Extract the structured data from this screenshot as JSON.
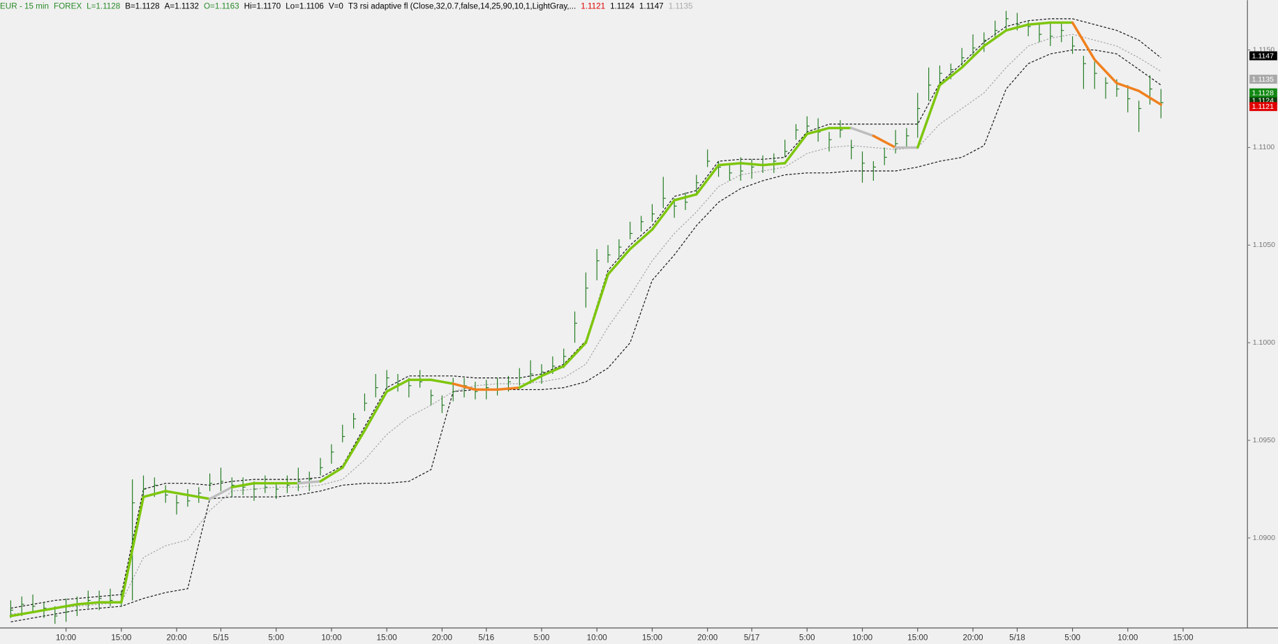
{
  "chart_data": {
    "type": "ohlc",
    "header": [
      {
        "text": "EUR - 15 min",
        "color": "#2a8a2a"
      },
      {
        "text": "FOREX",
        "color": "#2a8a2a"
      },
      {
        "text": "L=1.1128",
        "color": "#2a8a2a"
      },
      {
        "text": "B=1.1128",
        "color": "#000000"
      },
      {
        "text": "A=1.1132",
        "color": "#000000"
      },
      {
        "text": "O=1.1163",
        "color": "#2a8a2a"
      },
      {
        "text": "Hi=1.1170",
        "color": "#000000"
      },
      {
        "text": "Lo=1.1106",
        "color": "#000000"
      },
      {
        "text": "V=0",
        "color": "#000000"
      },
      {
        "text": "T3 rsi adaptive fl (Close,32,0.7,false,14,25,90,10,1,LightGray,...",
        "color": "#000000"
      },
      {
        "text": "1.1121",
        "color": "#e00000"
      },
      {
        "text": "1.1124",
        "color": "#000000"
      },
      {
        "text": "1.1147",
        "color": "#000000"
      },
      {
        "text": "1.1135",
        "color": "#aaaaaa"
      }
    ],
    "xlim": [
      0.03,
      112.78
    ],
    "ylim": [
      1.08541,
      1.11755
    ],
    "xticks": [
      {
        "value": 6,
        "label": "10:00"
      },
      {
        "value": 11,
        "label": "15:00"
      },
      {
        "value": 16,
        "label": "20:00"
      },
      {
        "value": 20,
        "label": "5/15"
      },
      {
        "value": 25,
        "label": "5:00"
      },
      {
        "value": 30,
        "label": "10:00"
      },
      {
        "value": 35,
        "label": "15:00"
      },
      {
        "value": 40,
        "label": "20:00"
      },
      {
        "value": 44,
        "label": "5/16"
      },
      {
        "value": 49,
        "label": "5:00"
      },
      {
        "value": 54,
        "label": "10:00"
      },
      {
        "value": 59,
        "label": "15:00"
      },
      {
        "value": 64,
        "label": "20:00"
      },
      {
        "value": 68,
        "label": "5/17"
      },
      {
        "value": 73,
        "label": "5:00"
      },
      {
        "value": 78,
        "label": "10:00"
      },
      {
        "value": 83,
        "label": "15:00"
      },
      {
        "value": 88,
        "label": "20:00"
      },
      {
        "value": 92,
        "label": "5/18"
      },
      {
        "value": 97,
        "label": "5:00"
      },
      {
        "value": 102,
        "label": "10:00"
      },
      {
        "value": 107,
        "label": "15:00"
      }
    ],
    "yticks": [
      {
        "value": 1.09,
        "label": "1.0900"
      },
      {
        "value": 1.095,
        "label": "1.0950"
      },
      {
        "value": 1.1,
        "label": "1.1000"
      },
      {
        "value": 1.105,
        "label": "1.1050"
      },
      {
        "value": 1.11,
        "label": "1.1100"
      },
      {
        "value": 1.115,
        "label": "1.1150"
      }
    ],
    "price_markers": [
      {
        "value": 1.1147,
        "color": "#000000"
      },
      {
        "value": 1.1135,
        "color": "#a8a8a8"
      },
      {
        "value": 1.1124,
        "color": "#0a3d0a"
      },
      {
        "value": 1.1128,
        "color": "#118811"
      },
      {
        "value": 1.1121,
        "color": "#e00000"
      }
    ],
    "bars": {
      "color": "#1f7a1f",
      "x": [
        1,
        2,
        3,
        4,
        5,
        6,
        7,
        8,
        9,
        10,
        11,
        12,
        13,
        14,
        15,
        16,
        17,
        18,
        19,
        20,
        21,
        22,
        23,
        24,
        25,
        26,
        27,
        28,
        29,
        30,
        31,
        32,
        33,
        34,
        35,
        36,
        37,
        38,
        39,
        40,
        41,
        42,
        43,
        44,
        45,
        46,
        47,
        48,
        49,
        50,
        51,
        52,
        53,
        54,
        55,
        56,
        57,
        58,
        59,
        60,
        61,
        62,
        63,
        64,
        65,
        66,
        67,
        68,
        69,
        70,
        71,
        72,
        73,
        74,
        75,
        76,
        77,
        78,
        79,
        80,
        81,
        82,
        83,
        84,
        85,
        86,
        87,
        88,
        89,
        90,
        91,
        92,
        93,
        94,
        95,
        96,
        97,
        98,
        99,
        100,
        101,
        102,
        103,
        104,
        105
      ],
      "high": [
        1.0868,
        1.087,
        1.0871,
        1.0867,
        1.0865,
        1.0869,
        1.087,
        1.0873,
        1.0873,
        1.0874,
        1.0873,
        1.093,
        1.0932,
        1.0931,
        1.0927,
        1.0922,
        1.0925,
        1.0926,
        1.0933,
        1.0936,
        1.0931,
        1.0931,
        1.0929,
        1.0932,
        1.0928,
        1.0932,
        1.0936,
        1.0934,
        1.0941,
        1.0948,
        1.0958,
        1.0964,
        1.0974,
        1.0984,
        1.0986,
        1.0984,
        1.0982,
        1.0986,
        1.0976,
        1.0973,
        1.0982,
        1.0982,
        1.098,
        1.0981,
        1.0982,
        1.0983,
        1.0987,
        1.0991,
        1.0989,
        1.0993,
        1.0997,
        1.1016,
        1.1036,
        1.1048,
        1.105,
        1.1053,
        1.1062,
        1.1065,
        1.1071,
        1.1085,
        1.1074,
        1.1077,
        1.1086,
        1.1099,
        1.1093,
        1.1092,
        1.1095,
        1.1094,
        1.1096,
        1.1097,
        1.1104,
        1.1112,
        1.1116,
        1.1115,
        1.1108,
        1.1114,
        1.1104,
        1.1098,
        1.1093,
        1.11,
        1.1109,
        1.111,
        1.1128,
        1.1141,
        1.1142,
        1.1143,
        1.1151,
        1.1158,
        1.1159,
        1.1165,
        1.117,
        1.1169,
        1.1165,
        1.1163,
        1.1164,
        1.1164,
        1.1157,
        1.1147,
        1.1144,
        1.1136,
        1.1135,
        1.1132,
        1.1124,
        1.1137,
        1.113
      ],
      "low": [
        1.0859,
        1.086,
        1.0862,
        1.0859,
        1.0856,
        1.0857,
        1.086,
        1.0864,
        1.0863,
        1.0865,
        1.0865,
        1.0868,
        1.092,
        1.0921,
        1.0918,
        1.0912,
        1.0916,
        1.0918,
        1.0924,
        1.0924,
        1.0921,
        1.0922,
        1.0919,
        1.0923,
        1.092,
        1.0923,
        1.0924,
        1.0924,
        1.0932,
        1.0938,
        1.0949,
        1.0956,
        1.0965,
        1.0972,
        1.0976,
        1.0975,
        1.0972,
        1.0977,
        1.0968,
        1.0964,
        1.097,
        1.0972,
        1.0971,
        1.0971,
        1.0973,
        1.0975,
        1.0978,
        1.0979,
        1.0979,
        1.0984,
        1.0987,
        1.1,
        1.1018,
        1.1032,
        1.1041,
        1.1043,
        1.1053,
        1.1057,
        1.1062,
        1.1069,
        1.1064,
        1.1068,
        1.1076,
        1.109,
        1.1085,
        1.1083,
        1.1083,
        1.1084,
        1.1087,
        1.1087,
        1.1095,
        1.1104,
        1.1107,
        1.1103,
        1.1098,
        1.1105,
        1.1094,
        1.1082,
        1.1083,
        1.1091,
        1.1097,
        1.11,
        1.1105,
        1.1124,
        1.1132,
        1.1135,
        1.1142,
        1.1146,
        1.1149,
        1.1156,
        1.116,
        1.116,
        1.1157,
        1.1154,
        1.1152,
        1.1154,
        1.1148,
        1.113,
        1.113,
        1.1125,
        1.1126,
        1.1118,
        1.1108,
        1.1122,
        1.1115
      ],
      "close": [
        1.0863,
        1.0866,
        1.0865,
        1.0864,
        1.086,
        1.0862,
        1.0866,
        1.0868,
        1.0869,
        1.0868,
        1.087,
        1.0918,
        1.0925,
        1.0927,
        1.0922,
        1.0918,
        1.0919,
        1.0923,
        1.0928,
        1.0929,
        1.0927,
        1.0926,
        1.0925,
        1.0926,
        1.0925,
        1.0927,
        1.0929,
        1.093,
        1.0936,
        1.0944,
        1.0952,
        1.0961,
        1.0969,
        1.0977,
        1.0982,
        1.0979,
        1.0978,
        1.098,
        1.0973,
        1.0968,
        1.0975,
        1.0978,
        1.0975,
        1.0977,
        1.0976,
        1.098,
        1.0982,
        1.0984,
        1.0985,
        1.0988,
        1.0993,
        1.101,
        1.1028,
        1.1042,
        1.1045,
        1.1049,
        1.1056,
        1.1062,
        1.1066,
        1.1074,
        1.107,
        1.1072,
        1.1082,
        1.1093,
        1.109,
        1.1087,
        1.1088,
        1.109,
        1.1091,
        1.1093,
        1.1098,
        1.1109,
        1.1111,
        1.1108,
        1.1104,
        1.1109,
        1.11,
        1.1092,
        1.109,
        1.1095,
        1.1102,
        1.1106,
        1.112,
        1.1132,
        1.1138,
        1.114,
        1.1146,
        1.1151,
        1.1155,
        1.116,
        1.1166,
        1.1163,
        1.1162,
        1.1158,
        1.1157,
        1.116,
        1.1152,
        1.1143,
        1.1138,
        1.1133,
        1.113,
        1.1125,
        1.112,
        1.113,
        1.1123
      ]
    },
    "line_x": [
      1,
      3,
      5,
      7,
      9,
      11,
      13,
      15,
      17,
      19,
      21,
      23,
      25,
      27,
      29,
      31,
      33,
      35,
      37,
      39,
      41,
      43,
      45,
      47,
      49,
      51,
      53,
      55,
      57,
      59,
      61,
      63,
      65,
      67,
      69,
      71,
      73,
      75,
      77,
      79,
      81,
      83,
      85,
      87,
      89,
      91,
      93,
      95,
      97,
      99,
      101,
      103,
      105
    ],
    "bands": [
      {
        "color": "#111111",
        "dash": "3,2",
        "values": [
          1.0864,
          1.0866,
          1.0868,
          1.0869,
          1.087,
          1.0871,
          1.0925,
          1.0928,
          1.0928,
          1.0927,
          1.0929,
          1.093,
          1.093,
          1.093,
          1.0931,
          1.0937,
          1.0957,
          1.0977,
          1.0983,
          1.0983,
          1.0983,
          1.0982,
          1.0982,
          1.0982,
          1.0984,
          1.0989,
          1.1001,
          1.1037,
          1.105,
          1.106,
          1.1075,
          1.1078,
          1.1093,
          1.1094,
          1.1094,
          1.1095,
          1.1108,
          1.1112,
          1.1112,
          1.1112,
          1.1112,
          1.1112,
          1.1133,
          1.1143,
          1.1154,
          1.1162,
          1.1165,
          1.1166,
          1.1166,
          1.1163,
          1.116,
          1.1155,
          1.1146
        ]
      },
      {
        "color": "#a0a0a0",
        "dash": "2,2",
        "values": [
          1.0861,
          1.0862,
          1.0864,
          1.0865,
          1.0866,
          1.0867,
          1.089,
          1.0896,
          1.0899,
          1.0914,
          1.0924,
          1.0925,
          1.0926,
          1.0926,
          1.0927,
          1.093,
          1.094,
          1.0953,
          1.0962,
          1.0968,
          1.0975,
          1.0978,
          1.0979,
          1.0979,
          1.098,
          1.0982,
          1.0989,
          1.1008,
          1.1024,
          1.1042,
          1.1056,
          1.1067,
          1.108,
          1.1086,
          1.1088,
          1.109,
          1.1097,
          1.11,
          1.1101,
          1.11,
          1.1099,
          1.11,
          1.1112,
          1.112,
          1.1128,
          1.1141,
          1.1152,
          1.1156,
          1.1158,
          1.1155,
          1.1152,
          1.1146,
          1.1139
        ]
      },
      {
        "color": "#111111",
        "dash": "3,2",
        "values": [
          1.0857,
          1.0859,
          1.0861,
          1.0863,
          1.0864,
          1.0865,
          1.0869,
          1.0872,
          1.0874,
          1.092,
          1.0921,
          1.0921,
          1.0921,
          1.0922,
          1.0924,
          1.0927,
          1.0928,
          1.0928,
          1.0929,
          1.0935,
          1.0975,
          1.0976,
          1.0976,
          1.0976,
          1.0976,
          1.0977,
          1.098,
          1.0987,
          1.1,
          1.1032,
          1.1045,
          1.106,
          1.1072,
          1.1079,
          1.1083,
          1.1086,
          1.1087,
          1.1087,
          1.1088,
          1.1088,
          1.1088,
          1.109,
          1.1093,
          1.1095,
          1.1101,
          1.113,
          1.1143,
          1.1148,
          1.115,
          1.115,
          1.1148,
          1.114,
          1.1132
        ]
      }
    ],
    "t3": {
      "values": [
        1.086,
        1.0862,
        1.0864,
        1.0866,
        1.0867,
        1.0867,
        1.0921,
        1.0924,
        1.0922,
        1.092,
        1.0926,
        1.0928,
        1.0928,
        1.0928,
        1.0929,
        1.0936,
        1.0955,
        1.0975,
        1.0981,
        1.0981,
        1.0979,
        1.0976,
        1.0976,
        1.0977,
        1.0983,
        1.0988,
        1.1,
        1.1035,
        1.1048,
        1.1058,
        1.1073,
        1.1076,
        1.1091,
        1.1092,
        1.1091,
        1.1092,
        1.1107,
        1.111,
        1.111,
        1.1106,
        1.11,
        1.11,
        1.1132,
        1.1141,
        1.1152,
        1.116,
        1.1163,
        1.1164,
        1.1164,
        1.1145,
        1.1133,
        1.1129,
        1.1122
      ],
      "segment_colors": [
        "#7dc60c",
        "#7dc60c",
        "#7dc60c",
        "#7dc60c",
        "#7dc60c",
        "#7dc60c",
        "#7dc60c",
        "#7dc60c",
        "#7dc60c",
        "#bdbdbd",
        "#7dc60c",
        "#7dc60c",
        "#7dc60c",
        "#bdbdbd",
        "#7dc60c",
        "#7dc60c",
        "#7dc60c",
        "#7dc60c",
        "#7dc60c",
        "#7dc60c",
        "#f0801e",
        "#f0801e",
        "#f0801e",
        "#7dc60c",
        "#7dc60c",
        "#7dc60c",
        "#7dc60c",
        "#7dc60c",
        "#7dc60c",
        "#7dc60c",
        "#7dc60c",
        "#7dc60c",
        "#7dc60c",
        "#7dc60c",
        "#7dc60c",
        "#7dc60c",
        "#7dc60c",
        "#7dc60c",
        "#bdbdbd",
        "#f0801e",
        "#bdbdbd",
        "#7dc60c",
        "#7dc60c",
        "#7dc60c",
        "#7dc60c",
        "#7dc60c",
        "#7dc60c",
        "#7dc60c",
        "#f0801e",
        "#f0801e",
        "#f0801e",
        "#f0801e"
      ]
    }
  }
}
